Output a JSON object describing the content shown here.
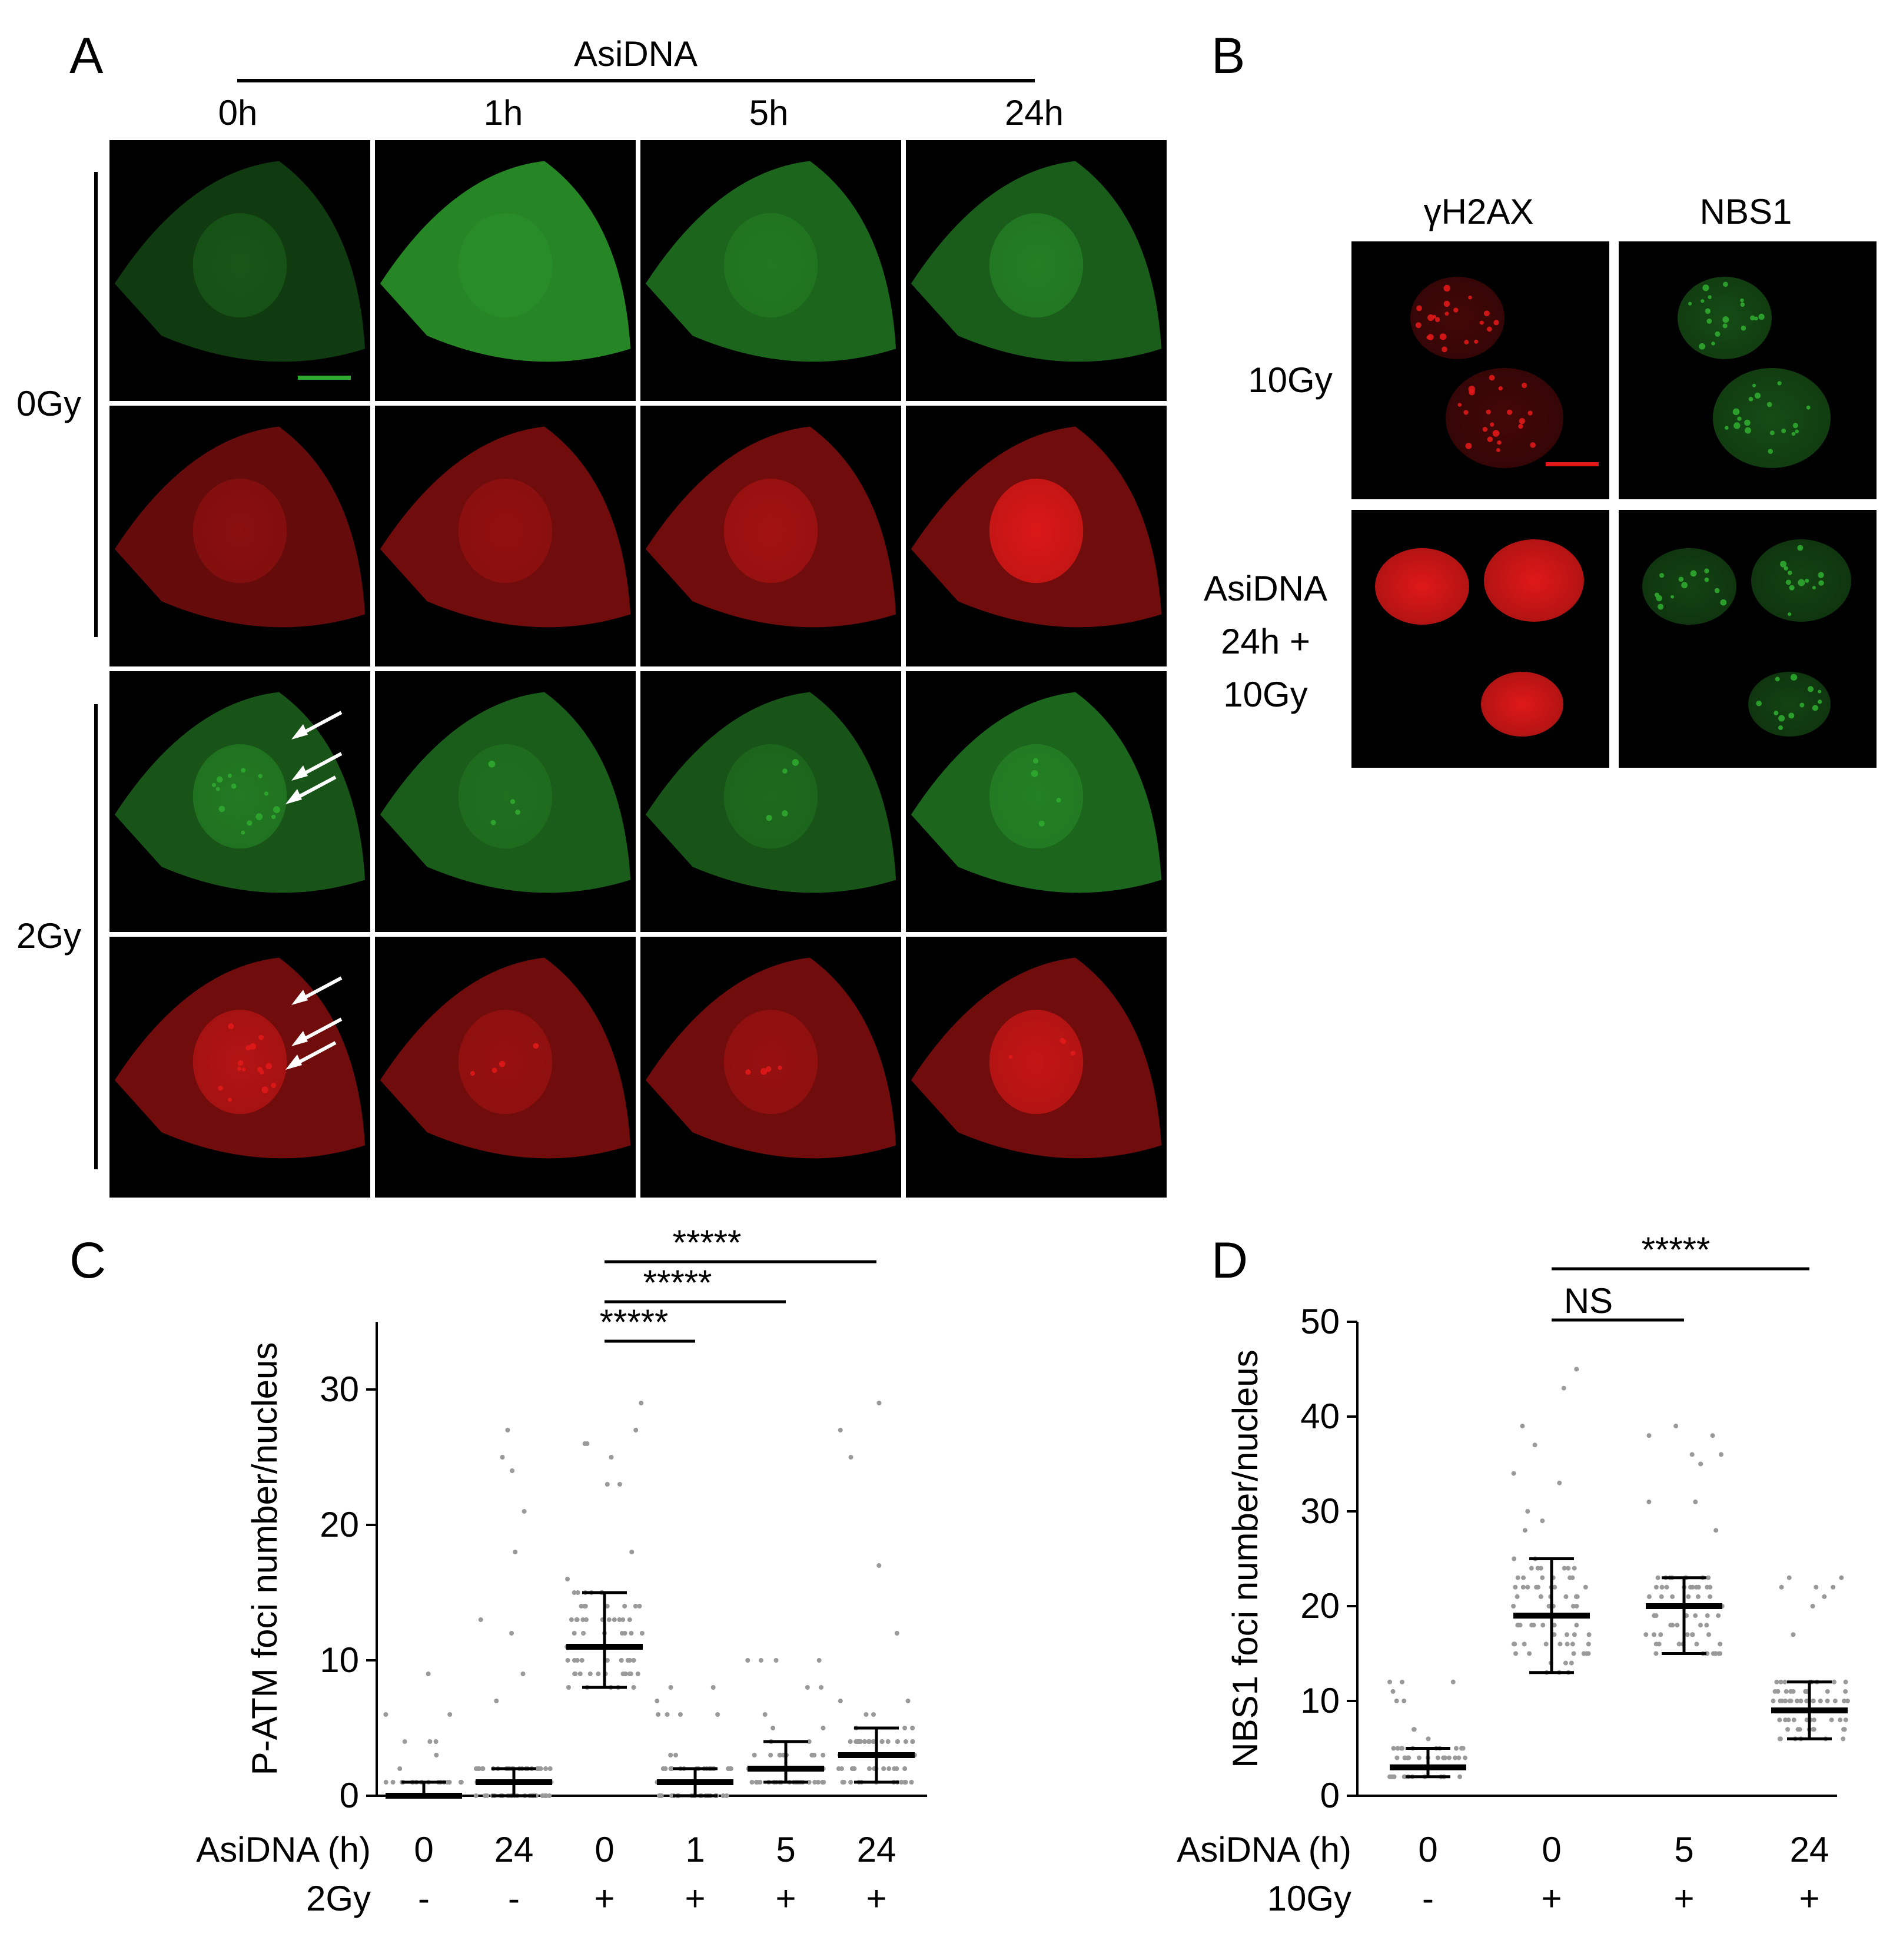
{
  "panelA": {
    "letter": "A",
    "treatment": "AsiDNA",
    "timepoints": [
      "0h",
      "1h",
      "5h",
      "24h"
    ],
    "doses": [
      "0Gy",
      "2Gy"
    ]
  },
  "panelB": {
    "letter": "B",
    "columns": [
      "γH2AX",
      "NBS1"
    ],
    "row1": "10Gy",
    "row2_lines": [
      "AsiDNA",
      "24h +",
      "10Gy"
    ]
  },
  "colors": {
    "green": "#2fa82f",
    "red": "#e01818",
    "scatter": "#9a9a9a"
  },
  "chart_data": [
    {
      "type": "scatter",
      "panel": "C",
      "ylabel": "P-ATM foci number/nucleus",
      "ylim": [
        0,
        35
      ],
      "yticks": [
        0,
        10,
        20,
        30
      ],
      "row_labels": [
        "AsiDNA (h)",
        "2Gy"
      ],
      "groups": [
        {
          "asidna": "0",
          "irr": "-",
          "median": 0,
          "q1": 0,
          "q3": 1,
          "max": 9
        },
        {
          "asidna": "24",
          "irr": "-",
          "median": 1,
          "q1": 0,
          "q3": 2,
          "max": 27
        },
        {
          "asidna": "0",
          "irr": "+",
          "median": 11,
          "q1": 8,
          "q3": 15,
          "max": 29
        },
        {
          "asidna": "1",
          "irr": "+",
          "median": 1,
          "q1": 0,
          "q3": 2,
          "max": 8
        },
        {
          "asidna": "5",
          "irr": "+",
          "median": 2,
          "q1": 1,
          "q3": 4,
          "max": 10
        },
        {
          "asidna": "24",
          "irr": "+",
          "median": 3,
          "q1": 1,
          "q3": 5,
          "max": 29
        }
      ],
      "significance": [
        {
          "from": 3,
          "to": 4,
          "label": "*****"
        },
        {
          "from": 3,
          "to": 5,
          "label": "*****"
        },
        {
          "from": 3,
          "to": 6,
          "label": "*****"
        }
      ]
    },
    {
      "type": "scatter",
      "panel": "D",
      "ylabel": "NBS1 foci number/nucleus",
      "ylim": [
        0,
        50
      ],
      "yticks": [
        0,
        10,
        20,
        30,
        40,
        50
      ],
      "row_labels": [
        "AsiDNA (h)",
        "10Gy"
      ],
      "groups": [
        {
          "asidna": "0",
          "irr": "-",
          "median": 3,
          "q1": 2,
          "q3": 5,
          "max": 12
        },
        {
          "asidna": "0",
          "irr": "+",
          "median": 19,
          "q1": 13,
          "q3": 25,
          "max": 45
        },
        {
          "asidna": "5",
          "irr": "+",
          "median": 20,
          "q1": 15,
          "q3": 23,
          "max": 39
        },
        {
          "asidna": "24",
          "irr": "+",
          "median": 9,
          "q1": 6,
          "q3": 12,
          "max": 23
        }
      ],
      "significance": [
        {
          "from": 2,
          "to": 3,
          "label": "NS"
        },
        {
          "from": 2,
          "to": 4,
          "label": "*****"
        }
      ]
    }
  ]
}
